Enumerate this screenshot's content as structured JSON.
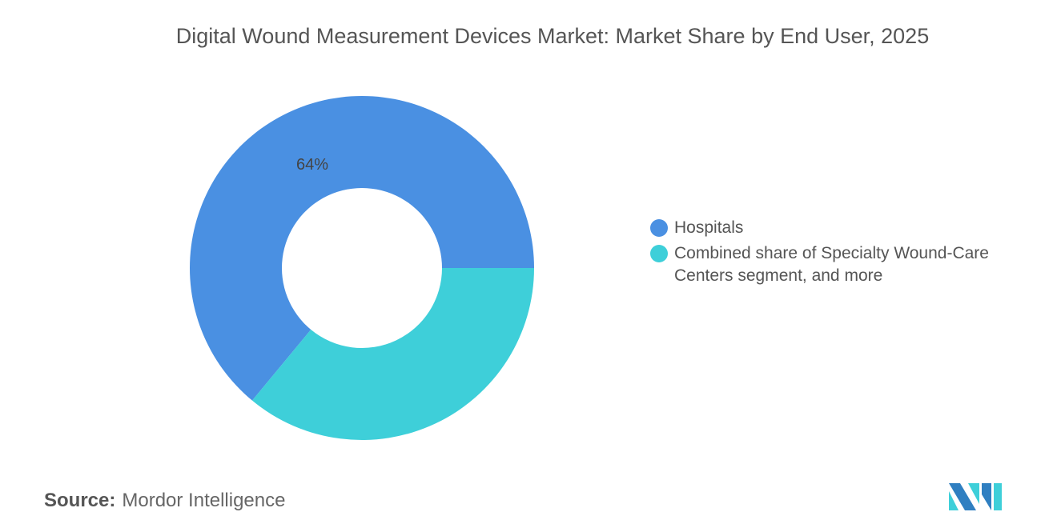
{
  "chart_data": {
    "type": "pie",
    "variant": "donut",
    "title": "Digital Wound Measurement Devices Market: Market Share by End User, 2025",
    "categories": [
      "Hospitals",
      "Combined share of Specialty Wound-Care Centers segment, and more"
    ],
    "values": [
      64,
      36
    ],
    "data_labels": [
      "64%",
      ""
    ],
    "colors": [
      "#4A90E2",
      "#3ECFD9"
    ],
    "legend_position": "right"
  },
  "source": {
    "label": "Source:",
    "text": "Mordor Intelligence"
  },
  "logo": {
    "text": "Mordor Intelligence"
  }
}
